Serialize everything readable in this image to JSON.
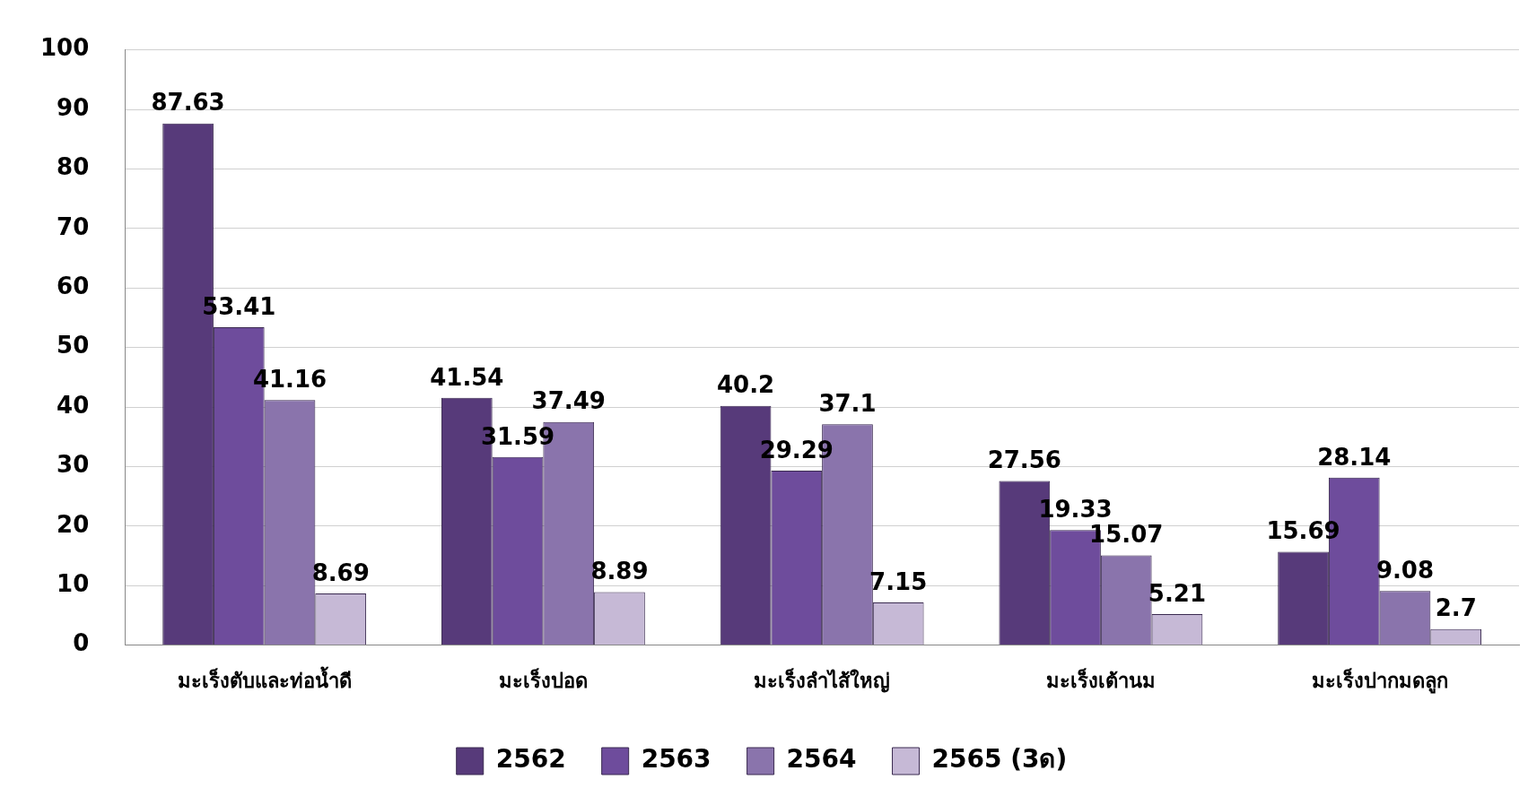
{
  "chart_data": {
    "type": "bar",
    "categories": [
      "มะเร็งตับและท่อน้ำดี",
      "มะเร็งปอด",
      "มะเร็งลำไส้ใหญ่",
      "มะเร็งเต้านม",
      "มะเร็งปากมดลูก"
    ],
    "series": [
      {
        "name": "2562",
        "color": "#573a7a",
        "values": [
          87.63,
          41.54,
          40.2,
          27.56,
          15.69
        ]
      },
      {
        "name": "2563",
        "color": "#6e4c9c",
        "values": [
          53.41,
          31.59,
          29.29,
          19.33,
          28.14
        ]
      },
      {
        "name": "2564",
        "color": "#8a74ac",
        "values": [
          41.16,
          37.49,
          37.1,
          15.07,
          9.08
        ]
      },
      {
        "name": "2565 (3ด)",
        "color": "#c6b9d6",
        "values": [
          8.69,
          8.89,
          7.15,
          5.21,
          2.7
        ]
      }
    ],
    "ylim": [
      0,
      100
    ],
    "yticks": [
      0,
      10,
      20,
      30,
      40,
      50,
      60,
      70,
      80,
      90,
      100
    ],
    "grid": "y",
    "legend": "bottom",
    "data_labels": true
  }
}
